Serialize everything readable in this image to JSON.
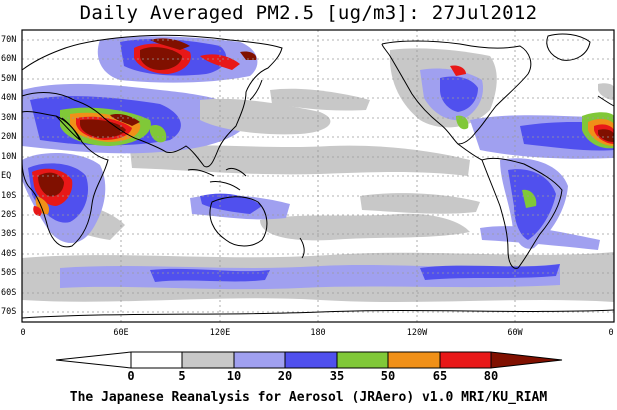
{
  "title": "Daily Averaged PM2.5 [ug/m3]: 27Jul2012",
  "footer": "The Japanese Reanalysis for Aerosol (JRAero) v1.0 MRI/KU_RIAM",
  "lat_labels": [
    "70N",
    "60N",
    "50N",
    "40N",
    "30N",
    "20N",
    "10N",
    "EQ",
    "10S",
    "20S",
    "30S",
    "40S",
    "50S",
    "60S",
    "70S"
  ],
  "lon_labels": [
    "0",
    "60E",
    "120E",
    "180",
    "120W",
    "60W",
    "0"
  ],
  "colorbar": {
    "ticks": [
      "0",
      "5",
      "10",
      "20",
      "35",
      "50",
      "65",
      "80"
    ],
    "colors": [
      "#ffffff",
      "#c8c8c8",
      "#a0a0f0",
      "#5050ee",
      "#80c838",
      "#f09018",
      "#e81818",
      "#801000"
    ]
  }
}
